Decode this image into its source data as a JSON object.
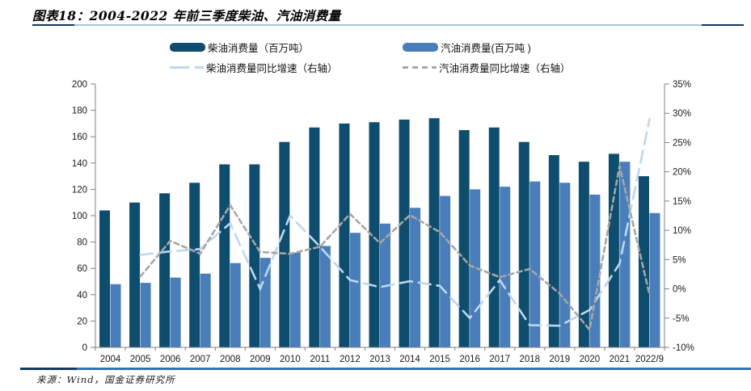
{
  "title": {
    "text": "图表18：2004-2022 年前三季度柴油、汽油消费量"
  },
  "legend": {
    "items": [
      {
        "label": "柴油消费量（百万吨）",
        "swatch": "bar-diesel",
        "color": "#0e4d6e"
      },
      {
        "label": "汽油消费量(百万吨 )",
        "swatch": "bar-gasoline",
        "color": "#4a7ebb"
      },
      {
        "label": "柴油消费量同比增速（右轴）",
        "swatch": "line-diesel",
        "color": "#bdd7ee"
      },
      {
        "label": "汽油消费量同比增速（右轴）",
        "swatch": "line-gasoline",
        "color": "#a6a6a6"
      }
    ]
  },
  "footer": {
    "source": "来源：Wind，国金证券研究所"
  },
  "colors": {
    "diesel_bar": "#0e4d6e",
    "gasoline_bar": "#4a7ebb",
    "diesel_line": "#bdd7ee",
    "gasoline_line": "#a6a6a6",
    "axis": "#808080",
    "tick_label": "#1a1a1a"
  },
  "chart_data": {
    "type": "bar",
    "title": "2004-2022 年前三季度柴油、汽油消费量",
    "categories": [
      "2004",
      "2005",
      "2006",
      "2007",
      "2008",
      "2009",
      "2010",
      "2011",
      "2012",
      "2013",
      "2014",
      "2015",
      "2016",
      "2017",
      "2018",
      "2019",
      "2020",
      "2021",
      "2022/9"
    ],
    "series": [
      {
        "name": "柴油消费量(百万吨)",
        "type": "bar",
        "axis": "left",
        "color": "#0e4d6e",
        "values": [
          104,
          110,
          117,
          125,
          139,
          139,
          156,
          167,
          170,
          171,
          173,
          174,
          165,
          167,
          156,
          146,
          141,
          147,
          130
        ]
      },
      {
        "name": "汽油消费量(百万吨)",
        "type": "bar",
        "axis": "left",
        "color": "#4a7ebb",
        "values": [
          48,
          49,
          53,
          56,
          64,
          68,
          72,
          77,
          87,
          94,
          106,
          115,
          120,
          122,
          126,
          125,
          116,
          141,
          102
        ]
      },
      {
        "name": "柴油消费量同比增速(右轴)",
        "type": "line",
        "axis": "right",
        "color": "#bdd7ee",
        "dash": "long",
        "values": [
          null,
          5.8,
          6.4,
          6.8,
          11.2,
          0.0,
          12.5,
          7.2,
          1.5,
          0.3,
          1.3,
          0.5,
          -5.0,
          1.5,
          -6.2,
          -6.3,
          -3.6,
          4.3,
          29.0
        ]
      },
      {
        "name": "汽油消费量同比增速(右轴)",
        "type": "line",
        "axis": "right",
        "color": "#a6a6a6",
        "dash": "short",
        "values": [
          null,
          2.1,
          8.2,
          6.0,
          14.3,
          6.3,
          6.0,
          7.2,
          12.8,
          7.8,
          12.6,
          9.7,
          4.0,
          2.0,
          3.4,
          -0.8,
          -7.0,
          21.0,
          -1.0
        ]
      }
    ],
    "left_axis": {
      "min": 0,
      "max": 200,
      "step": 20,
      "ticks": [
        "0",
        "20",
        "40",
        "60",
        "80",
        "100",
        "120",
        "140",
        "160",
        "180",
        "200"
      ]
    },
    "right_axis": {
      "min": -10,
      "max": 35,
      "step": 5,
      "ticks": [
        "-10%",
        "-5%",
        "0%",
        "5%",
        "10%",
        "15%",
        "20%",
        "25%",
        "30%",
        "35%"
      ]
    },
    "grid": false,
    "legend_position": "top"
  }
}
